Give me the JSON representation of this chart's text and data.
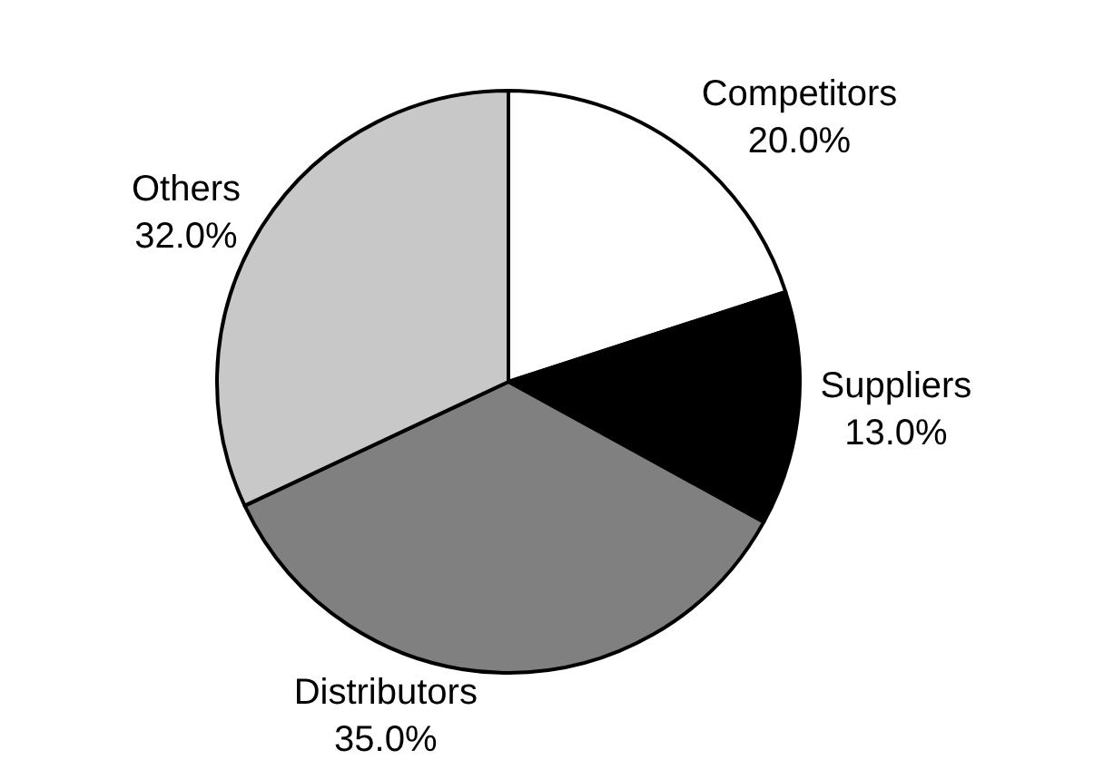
{
  "chart_data": {
    "type": "pie",
    "categories": [
      "Competitors",
      "Suppliers",
      "Distributors",
      "Others"
    ],
    "values": [
      20.0,
      13.0,
      35.0,
      32.0
    ],
    "colors": [
      "#ffffff",
      "#000000",
      "#808080",
      "#c8c8c8"
    ],
    "value_labels": [
      "20.0%",
      "13.0%",
      "35.0%",
      "32.0%"
    ],
    "legend": false
  }
}
